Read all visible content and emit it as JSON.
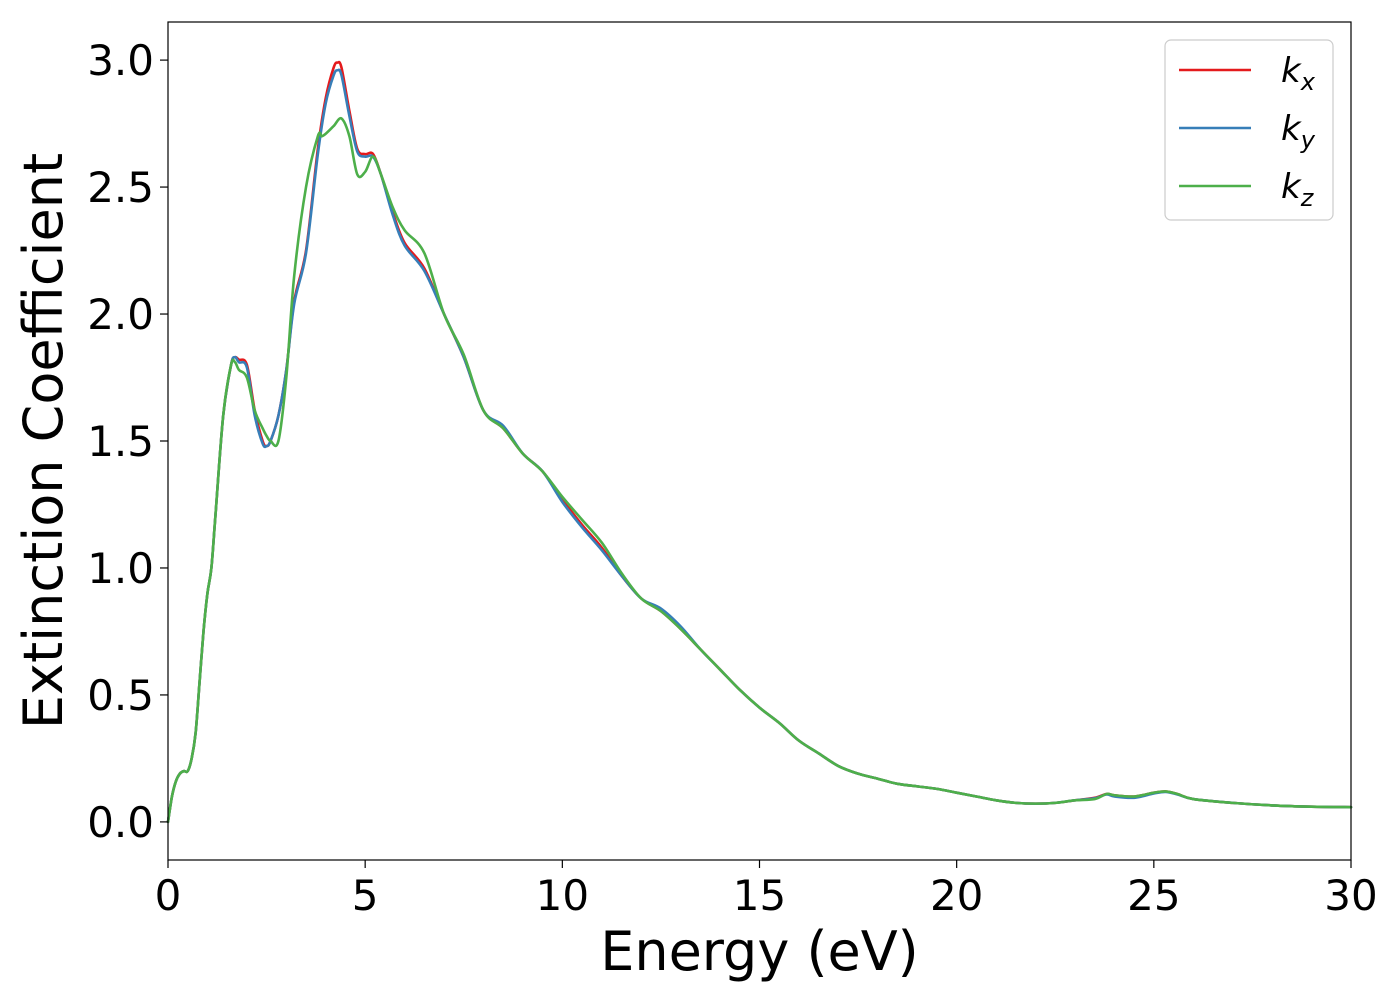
{
  "chart_data": {
    "type": "line",
    "xlabel": "Energy (eV)",
    "ylabel": "Extinction Coefficient",
    "xlim": [
      0,
      30
    ],
    "ylim": [
      -0.15,
      3.15
    ],
    "xticks": [
      0,
      5,
      10,
      15,
      20,
      25,
      30
    ],
    "xtick_labels": [
      "0",
      "5",
      "10",
      "15",
      "20",
      "25",
      "30"
    ],
    "yticks": [
      0.0,
      0.5,
      1.0,
      1.5,
      2.0,
      2.5,
      3.0
    ],
    "ytick_labels": [
      "0.0",
      "0.5",
      "1.0",
      "1.5",
      "2.0",
      "2.5",
      "3.0"
    ],
    "grid": false,
    "legend_position": "top-right",
    "series": [
      {
        "name": "k",
        "subscript": "x",
        "color": "#e41a1c",
        "x": [
          0,
          0.1,
          0.2,
          0.3,
          0.4,
          0.5,
          0.6,
          0.7,
          0.8,
          0.9,
          1.0,
          1.1,
          1.2,
          1.4,
          1.6,
          1.7,
          1.8,
          2.0,
          2.2,
          2.4,
          2.5,
          2.6,
          2.8,
          3.0,
          3.2,
          3.5,
          3.8,
          4.0,
          4.2,
          4.3,
          4.4,
          4.6,
          4.8,
          5.0,
          5.2,
          5.4,
          5.7,
          6.0,
          6.5,
          7.0,
          7.5,
          8.0,
          8.5,
          9.0,
          9.5,
          10.0,
          10.5,
          11.0,
          11.5,
          12.0,
          12.5,
          13.0,
          13.5,
          14.0,
          14.5,
          15.0,
          15.5,
          16.0,
          16.5,
          17.0,
          17.5,
          18.0,
          18.5,
          19.0,
          19.5,
          20.0,
          20.5,
          21.0,
          21.5,
          22.0,
          22.5,
          23.0,
          23.5,
          23.8,
          24.0,
          24.5,
          25.0,
          25.3,
          25.6,
          26.0,
          27.0,
          28.0,
          29.0,
          30.0
        ],
        "y": [
          0.0,
          0.1,
          0.16,
          0.19,
          0.2,
          0.2,
          0.25,
          0.35,
          0.55,
          0.75,
          0.9,
          1.0,
          1.2,
          1.6,
          1.8,
          1.83,
          1.82,
          1.8,
          1.62,
          1.5,
          1.48,
          1.5,
          1.6,
          1.78,
          2.05,
          2.25,
          2.65,
          2.85,
          2.97,
          2.99,
          2.97,
          2.8,
          2.65,
          2.63,
          2.63,
          2.55,
          2.4,
          2.28,
          2.18,
          2.0,
          1.83,
          1.62,
          1.55,
          1.45,
          1.38,
          1.27,
          1.17,
          1.08,
          0.97,
          0.88,
          0.83,
          0.76,
          0.68,
          0.6,
          0.52,
          0.45,
          0.39,
          0.32,
          0.27,
          0.22,
          0.19,
          0.17,
          0.15,
          0.14,
          0.13,
          0.115,
          0.1,
          0.085,
          0.075,
          0.072,
          0.075,
          0.085,
          0.095,
          0.11,
          0.105,
          0.1,
          0.115,
          0.12,
          0.11,
          0.09,
          0.075,
          0.065,
          0.06,
          0.058
        ]
      },
      {
        "name": "k",
        "subscript": "y",
        "color": "#377eb8",
        "x": [
          0,
          0.1,
          0.2,
          0.3,
          0.4,
          0.5,
          0.6,
          0.7,
          0.8,
          0.9,
          1.0,
          1.1,
          1.2,
          1.4,
          1.6,
          1.7,
          1.8,
          2.0,
          2.2,
          2.4,
          2.5,
          2.6,
          2.8,
          3.0,
          3.2,
          3.5,
          3.8,
          4.0,
          4.2,
          4.3,
          4.4,
          4.6,
          4.8,
          5.0,
          5.2,
          5.4,
          5.7,
          6.0,
          6.5,
          7.0,
          7.5,
          8.0,
          8.5,
          9.0,
          9.5,
          10.0,
          10.5,
          11.0,
          11.5,
          12.0,
          12.5,
          13.0,
          13.5,
          14.0,
          14.5,
          15.0,
          15.5,
          16.0,
          16.5,
          17.0,
          17.5,
          18.0,
          18.5,
          19.0,
          19.5,
          20.0,
          20.5,
          21.0,
          21.5,
          22.0,
          22.5,
          23.0,
          23.5,
          23.8,
          24.0,
          24.5,
          25.0,
          25.3,
          25.6,
          26.0,
          27.0,
          28.0,
          29.0,
          30.0
        ],
        "y": [
          0.0,
          0.1,
          0.16,
          0.19,
          0.2,
          0.2,
          0.25,
          0.35,
          0.55,
          0.75,
          0.9,
          1.0,
          1.2,
          1.6,
          1.8,
          1.83,
          1.81,
          1.79,
          1.6,
          1.49,
          1.48,
          1.5,
          1.6,
          1.78,
          2.04,
          2.24,
          2.63,
          2.83,
          2.94,
          2.96,
          2.94,
          2.78,
          2.64,
          2.62,
          2.62,
          2.55,
          2.39,
          2.27,
          2.17,
          2.0,
          1.83,
          1.62,
          1.56,
          1.45,
          1.38,
          1.26,
          1.16,
          1.07,
          0.97,
          0.88,
          0.84,
          0.77,
          0.68,
          0.6,
          0.52,
          0.45,
          0.39,
          0.32,
          0.27,
          0.22,
          0.19,
          0.17,
          0.15,
          0.14,
          0.13,
          0.115,
          0.1,
          0.085,
          0.075,
          0.072,
          0.075,
          0.085,
          0.093,
          0.108,
          0.1,
          0.095,
          0.112,
          0.118,
          0.108,
          0.09,
          0.075,
          0.065,
          0.06,
          0.058
        ]
      },
      {
        "name": "k",
        "subscript": "z",
        "color": "#4daf4a",
        "x": [
          0,
          0.1,
          0.2,
          0.3,
          0.4,
          0.5,
          0.6,
          0.7,
          0.8,
          0.9,
          1.0,
          1.1,
          1.2,
          1.4,
          1.6,
          1.7,
          1.8,
          2.0,
          2.2,
          2.4,
          2.5,
          2.6,
          2.8,
          3.0,
          3.2,
          3.5,
          3.8,
          3.9,
          4.0,
          4.2,
          4.4,
          4.6,
          4.8,
          5.0,
          5.2,
          5.4,
          5.7,
          6.0,
          6.5,
          7.0,
          7.5,
          8.0,
          8.5,
          9.0,
          9.5,
          10.0,
          10.5,
          11.0,
          11.5,
          12.0,
          12.5,
          13.0,
          13.5,
          14.0,
          14.5,
          15.0,
          15.5,
          16.0,
          16.5,
          17.0,
          17.5,
          18.0,
          18.5,
          19.0,
          19.5,
          20.0,
          20.5,
          21.0,
          21.5,
          22.0,
          22.5,
          23.0,
          23.5,
          23.8,
          24.0,
          24.5,
          25.0,
          25.3,
          25.6,
          26.0,
          27.0,
          28.0,
          29.0,
          30.0
        ],
        "y": [
          0.0,
          0.1,
          0.16,
          0.19,
          0.2,
          0.2,
          0.25,
          0.35,
          0.55,
          0.75,
          0.9,
          1.0,
          1.2,
          1.6,
          1.8,
          1.81,
          1.78,
          1.75,
          1.62,
          1.55,
          1.52,
          1.5,
          1.5,
          1.75,
          2.15,
          2.5,
          2.7,
          2.7,
          2.71,
          2.74,
          2.77,
          2.7,
          2.55,
          2.56,
          2.62,
          2.55,
          2.42,
          2.33,
          2.24,
          2.0,
          1.84,
          1.62,
          1.55,
          1.45,
          1.38,
          1.28,
          1.19,
          1.1,
          0.98,
          0.88,
          0.83,
          0.76,
          0.68,
          0.6,
          0.52,
          0.45,
          0.39,
          0.32,
          0.27,
          0.22,
          0.19,
          0.17,
          0.15,
          0.14,
          0.13,
          0.115,
          0.1,
          0.085,
          0.075,
          0.072,
          0.075,
          0.085,
          0.09,
          0.11,
          0.105,
          0.1,
          0.115,
          0.12,
          0.11,
          0.09,
          0.075,
          0.065,
          0.06,
          0.058
        ]
      }
    ]
  }
}
